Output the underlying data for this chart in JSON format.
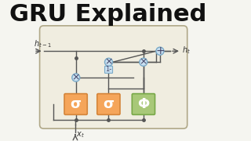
{
  "title": "GRU Explained",
  "title_fontsize": 22,
  "title_fontweight": "bold",
  "bg_color": "#f5f5f0",
  "box_bg": "#f0ede0",
  "box_edge": "#b0a888",
  "sigma_color": "#f5a55a",
  "sigma_edge": "#d4853a",
  "tanh_color": "#a8c878",
  "tanh_edge": "#78a848",
  "circle_color": "#c8dff0",
  "circle_edge": "#7aaac8",
  "small_box_color": "#c8dff0",
  "small_box_edge": "#7aaac8",
  "line_color": "#555555",
  "arrow_color": "#555555",
  "label_color": "#333333",
  "h_prev_label": "h_{t-1}",
  "h_next_label": "h_t",
  "x_label": "x_t",
  "sigma_label": "σ",
  "tanh_label": "Φ",
  "mult_label": "×",
  "add_label": "+",
  "one_minus_label": "1-"
}
